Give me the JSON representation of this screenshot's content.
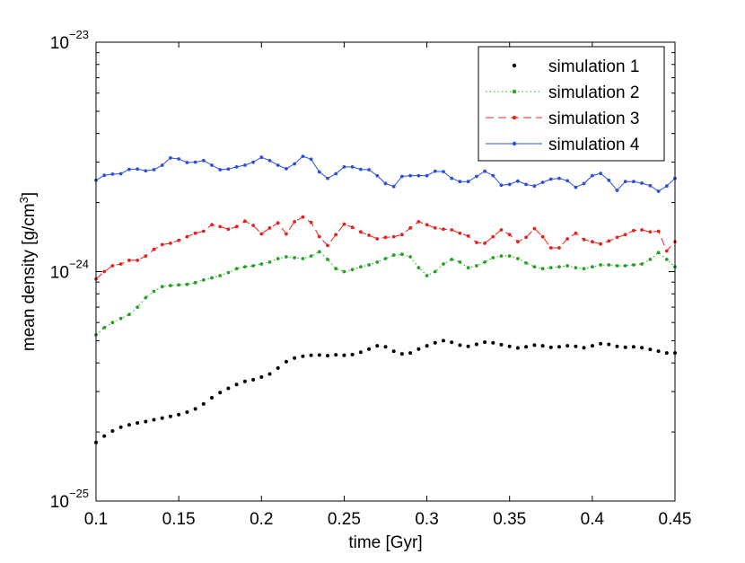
{
  "chart_data": {
    "type": "line",
    "title": "",
    "xlabel": "time [Gyr]",
    "ylabel": "mean density [g/cm^3]",
    "ylabel_parts": {
      "main": "mean density [g/cm",
      "sup": "3",
      "end": "]"
    },
    "yscale": "log",
    "xlim": [
      0.1,
      0.45
    ],
    "ylim": [
      1e-25,
      1e-23
    ],
    "x_ticks": [
      "0.1",
      "0.15",
      "0.2",
      "0.25",
      "0.3",
      "0.35",
      "0.4",
      "0.45"
    ],
    "y_ticks": [
      {
        "base": "10",
        "exp": "−25"
      },
      {
        "base": "10",
        "exp": "−24"
      },
      {
        "base": "10",
        "exp": "−23"
      }
    ],
    "legend_position": "top-right",
    "series": [
      {
        "name": "simulation 1",
        "style": "dots",
        "color": "#000000",
        "x": [
          0.1,
          0.105,
          0.11,
          0.115,
          0.12,
          0.125,
          0.13,
          0.135,
          0.14,
          0.145,
          0.15,
          0.155,
          0.16,
          0.165,
          0.17,
          0.175,
          0.18,
          0.185,
          0.19,
          0.195,
          0.2,
          0.205,
          0.21,
          0.215,
          0.22,
          0.225,
          0.23,
          0.235,
          0.24,
          0.245,
          0.25,
          0.255,
          0.26,
          0.265,
          0.27,
          0.275,
          0.28,
          0.285,
          0.29,
          0.295,
          0.3,
          0.305,
          0.31,
          0.315,
          0.32,
          0.325,
          0.33,
          0.335,
          0.34,
          0.345,
          0.35,
          0.355,
          0.36,
          0.365,
          0.37,
          0.375,
          0.38,
          0.385,
          0.39,
          0.395,
          0.4,
          0.405,
          0.41,
          0.415,
          0.42,
          0.425,
          0.43,
          0.435,
          0.44,
          0.445,
          0.45
        ],
        "values": [
          1.8e-25,
          1.92e-25,
          2.02e-25,
          2.1e-25,
          2.15e-25,
          2.19e-25,
          2.22e-25,
          2.26e-25,
          2.3e-25,
          2.34e-25,
          2.38e-25,
          2.44e-25,
          2.52e-25,
          2.65e-25,
          2.82e-25,
          2.97e-25,
          3.1e-25,
          3.22e-25,
          3.32e-25,
          3.38e-25,
          3.47e-25,
          3.58e-25,
          3.8e-25,
          4.05e-25,
          4.2e-25,
          4.28e-25,
          4.32e-25,
          4.33e-25,
          4.3e-25,
          4.34e-25,
          4.32e-25,
          4.35e-25,
          4.45e-25,
          4.6e-25,
          4.75e-25,
          4.7e-25,
          4.5e-25,
          4.38e-25,
          4.42e-25,
          4.6e-25,
          4.75e-25,
          4.9e-25,
          5e-25,
          4.92e-25,
          4.78e-25,
          4.72e-25,
          4.82e-25,
          4.93e-25,
          4.9e-25,
          4.8e-25,
          4.72e-25,
          4.65e-25,
          4.7e-25,
          4.78e-25,
          4.75e-25,
          4.68e-25,
          4.7e-25,
          4.75e-25,
          4.72e-25,
          4.66e-25,
          4.75e-25,
          4.85e-25,
          4.82e-25,
          4.72e-25,
          4.68e-25,
          4.7e-25,
          4.66e-25,
          4.58e-25,
          4.5e-25,
          4.42e-25,
          4.42e-25
        ]
      },
      {
        "name": "simulation 2",
        "style": "dotted-markers",
        "color": "#22a51e",
        "x": [
          0.1,
          0.105,
          0.11,
          0.115,
          0.12,
          0.125,
          0.13,
          0.135,
          0.14,
          0.145,
          0.15,
          0.155,
          0.16,
          0.165,
          0.17,
          0.175,
          0.18,
          0.185,
          0.19,
          0.195,
          0.2,
          0.205,
          0.21,
          0.215,
          0.22,
          0.225,
          0.23,
          0.235,
          0.24,
          0.245,
          0.25,
          0.255,
          0.26,
          0.265,
          0.27,
          0.275,
          0.28,
          0.285,
          0.29,
          0.295,
          0.3,
          0.305,
          0.31,
          0.315,
          0.32,
          0.325,
          0.33,
          0.335,
          0.34,
          0.345,
          0.35,
          0.355,
          0.36,
          0.365,
          0.37,
          0.375,
          0.38,
          0.385,
          0.39,
          0.395,
          0.4,
          0.405,
          0.41,
          0.415,
          0.42,
          0.425,
          0.43,
          0.435,
          0.44,
          0.445,
          0.45
        ],
        "values": [
          5.3e-25,
          5.7e-25,
          6e-25,
          6.25e-25,
          6.5e-25,
          7e-25,
          7.7e-25,
          8.2e-25,
          8.6e-25,
          8.7e-25,
          8.75e-25,
          8.8e-25,
          8.95e-25,
          9.2e-25,
          9.4e-25,
          9.6e-25,
          9.9e-25,
          1.03e-24,
          1.05e-24,
          1.06e-24,
          1.08e-24,
          1.1e-24,
          1.14e-24,
          1.16e-24,
          1.15e-24,
          1.14e-24,
          1.17e-24,
          1.22e-24,
          1.13e-24,
          1.03e-24,
          1e-24,
          1.02e-24,
          1.05e-24,
          1.07e-24,
          1.1e-24,
          1.14e-24,
          1.18e-24,
          1.19e-24,
          1.16e-24,
          1.04e-24,
          9.6e-25,
          1e-24,
          1.08e-24,
          1.13e-24,
          1.1e-24,
          1.04e-24,
          1.06e-24,
          1.1e-24,
          1.15e-24,
          1.17e-24,
          1.17e-24,
          1.14e-24,
          1.09e-24,
          1.05e-24,
          1.03e-24,
          1.04e-24,
          1.05e-24,
          1.06e-24,
          1.04e-24,
          1.03e-24,
          1.05e-24,
          1.07e-24,
          1.07e-24,
          1.06e-24,
          1.06e-24,
          1.07e-24,
          1.08e-24,
          1.13e-24,
          1.21e-24,
          1.13e-24,
          1.05e-24
        ]
      },
      {
        "name": "simulation 3",
        "style": "dashed-markers",
        "color": "#e8201b",
        "x": [
          0.1,
          0.105,
          0.11,
          0.115,
          0.12,
          0.125,
          0.13,
          0.135,
          0.14,
          0.145,
          0.15,
          0.155,
          0.16,
          0.165,
          0.17,
          0.175,
          0.18,
          0.185,
          0.19,
          0.195,
          0.2,
          0.205,
          0.21,
          0.215,
          0.22,
          0.225,
          0.23,
          0.235,
          0.24,
          0.245,
          0.25,
          0.255,
          0.26,
          0.265,
          0.27,
          0.275,
          0.28,
          0.285,
          0.29,
          0.295,
          0.3,
          0.305,
          0.31,
          0.315,
          0.32,
          0.325,
          0.33,
          0.335,
          0.34,
          0.345,
          0.35,
          0.355,
          0.36,
          0.365,
          0.37,
          0.375,
          0.38,
          0.385,
          0.39,
          0.395,
          0.4,
          0.405,
          0.41,
          0.415,
          0.42,
          0.425,
          0.43,
          0.435,
          0.44,
          0.445,
          0.45
        ],
        "values": [
          9.3e-25,
          1e-24,
          1.06e-24,
          1.08e-24,
          1.12e-24,
          1.12e-24,
          1.17e-24,
          1.25e-24,
          1.31e-24,
          1.33e-24,
          1.37e-24,
          1.42e-24,
          1.47e-24,
          1.5e-24,
          1.6e-24,
          1.57e-24,
          1.53e-24,
          1.57e-24,
          1.66e-24,
          1.59e-24,
          1.46e-24,
          1.55e-24,
          1.63e-24,
          1.46e-24,
          1.65e-24,
          1.73e-24,
          1.64e-24,
          1.42e-24,
          1.3e-24,
          1.45e-24,
          1.61e-24,
          1.56e-24,
          1.49e-24,
          1.44e-24,
          1.39e-24,
          1.41e-24,
          1.42e-24,
          1.45e-24,
          1.55e-24,
          1.65e-24,
          1.6e-24,
          1.55e-24,
          1.53e-24,
          1.52e-24,
          1.47e-24,
          1.43e-24,
          1.34e-24,
          1.33e-24,
          1.42e-24,
          1.52e-24,
          1.45e-24,
          1.35e-24,
          1.41e-24,
          1.54e-24,
          1.42e-24,
          1.27e-24,
          1.27e-24,
          1.39e-24,
          1.47e-24,
          1.38e-24,
          1.35e-24,
          1.32e-24,
          1.36e-24,
          1.41e-24,
          1.45e-24,
          1.51e-24,
          1.52e-24,
          1.49e-24,
          1.5e-24,
          1.23e-24,
          1.35e-24
        ]
      },
      {
        "name": "simulation 4",
        "style": "solid-markers",
        "color": "#2b4fe0",
        "x": [
          0.1,
          0.105,
          0.11,
          0.115,
          0.12,
          0.125,
          0.13,
          0.135,
          0.14,
          0.145,
          0.15,
          0.155,
          0.16,
          0.165,
          0.17,
          0.175,
          0.18,
          0.185,
          0.19,
          0.195,
          0.2,
          0.205,
          0.21,
          0.215,
          0.22,
          0.225,
          0.23,
          0.235,
          0.24,
          0.245,
          0.25,
          0.255,
          0.26,
          0.265,
          0.27,
          0.275,
          0.28,
          0.285,
          0.29,
          0.295,
          0.3,
          0.305,
          0.31,
          0.315,
          0.32,
          0.325,
          0.33,
          0.335,
          0.34,
          0.345,
          0.35,
          0.355,
          0.36,
          0.365,
          0.37,
          0.375,
          0.38,
          0.385,
          0.39,
          0.395,
          0.4,
          0.405,
          0.41,
          0.415,
          0.42,
          0.425,
          0.43,
          0.435,
          0.44,
          0.445,
          0.45
        ],
        "values": [
          2.5e-24,
          2.63e-24,
          2.66e-24,
          2.67e-24,
          2.79e-24,
          2.8e-24,
          2.75e-24,
          2.78e-24,
          2.91e-24,
          3.13e-24,
          3.1e-24,
          2.99e-24,
          3e-24,
          3.05e-24,
          2.91e-24,
          2.78e-24,
          2.8e-24,
          2.86e-24,
          2.91e-24,
          3e-24,
          3.15e-24,
          3.05e-24,
          2.91e-24,
          2.81e-24,
          2.95e-24,
          3.18e-24,
          3.09e-24,
          2.72e-24,
          2.55e-24,
          2.67e-24,
          2.86e-24,
          2.86e-24,
          2.79e-24,
          2.78e-24,
          2.62e-24,
          2.42e-24,
          2.35e-24,
          2.6e-24,
          2.62e-24,
          2.62e-24,
          2.62e-24,
          2.74e-24,
          2.73e-24,
          2.55e-24,
          2.47e-24,
          2.47e-24,
          2.6e-24,
          2.74e-24,
          2.62e-24,
          2.38e-24,
          2.4e-24,
          2.48e-24,
          2.4e-24,
          2.36e-24,
          2.45e-24,
          2.53e-24,
          2.55e-24,
          2.49e-24,
          2.33e-24,
          2.42e-24,
          2.62e-24,
          2.68e-24,
          2.5e-24,
          2.26e-24,
          2.47e-24,
          2.47e-24,
          2.43e-24,
          2.37e-24,
          2.24e-24,
          2.36e-24,
          2.55e-24
        ]
      }
    ]
  }
}
